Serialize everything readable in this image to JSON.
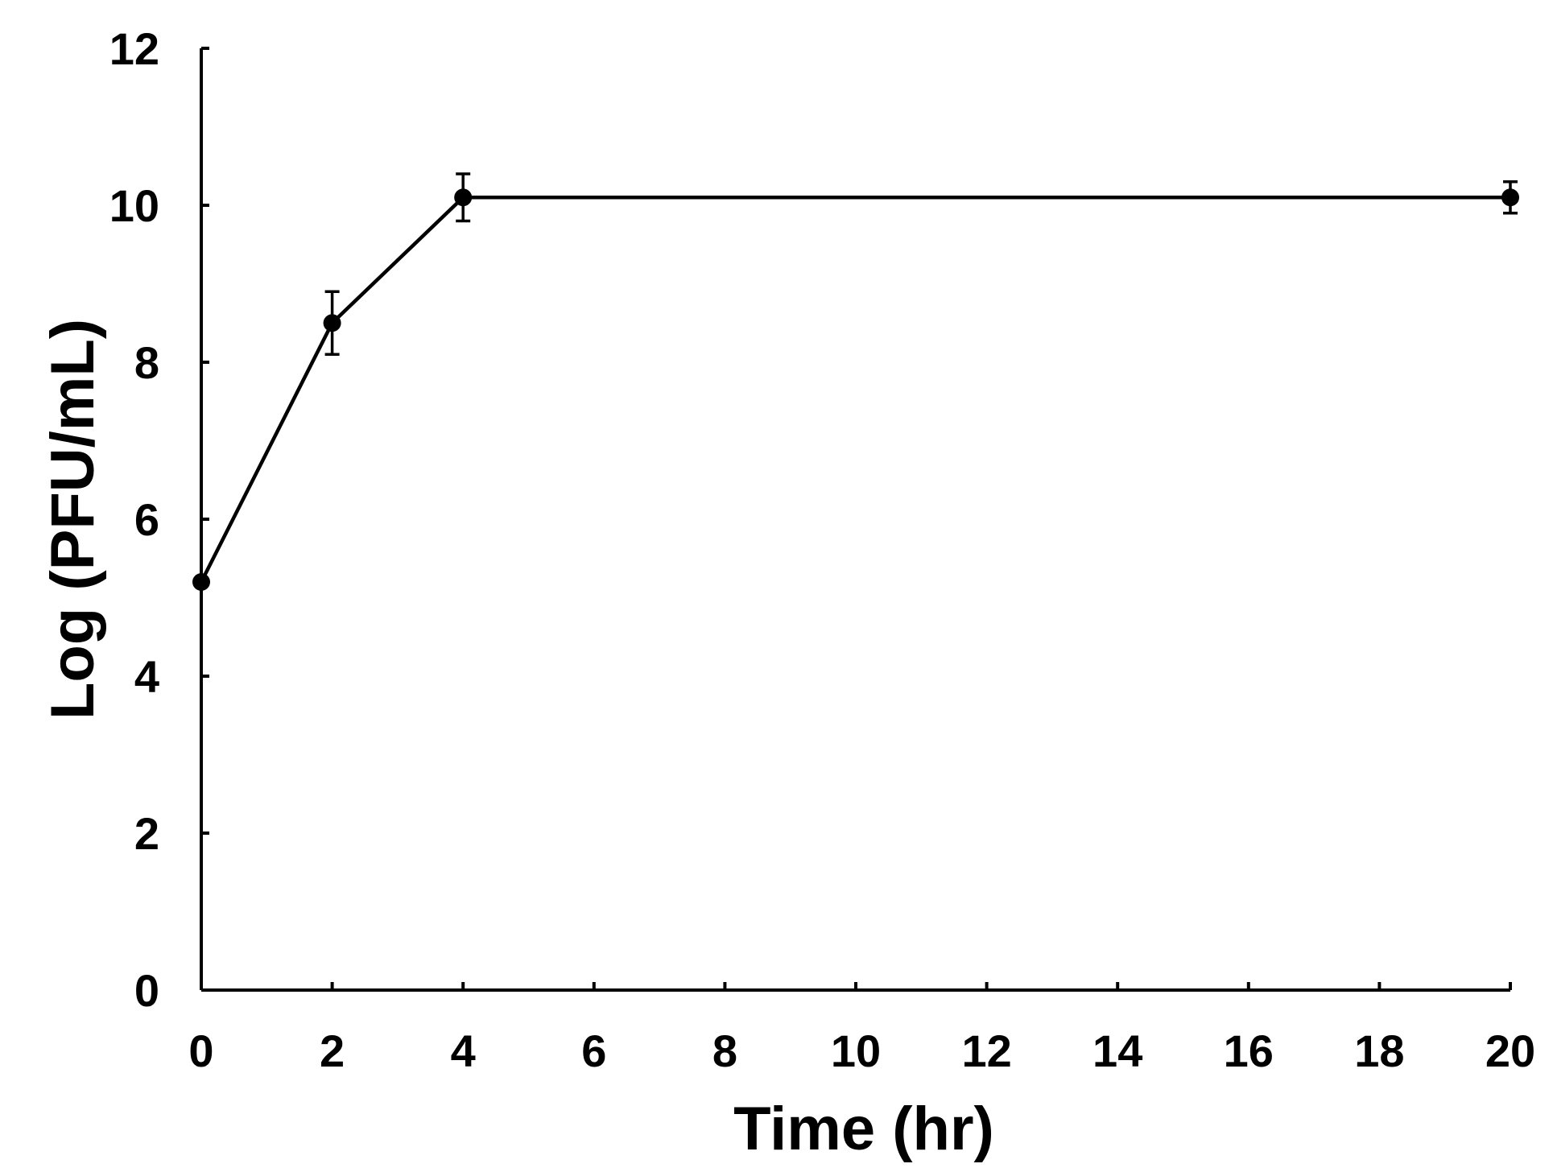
{
  "chart_data": {
    "type": "line",
    "xlabel": "Time (hr)",
    "ylabel": "Log (PFU/mL)",
    "xlim": [
      0,
      20
    ],
    "ylim": [
      0,
      12
    ],
    "xticks": [
      0,
      2,
      4,
      6,
      8,
      10,
      12,
      14,
      16,
      18,
      20
    ],
    "yticks": [
      0,
      2,
      4,
      6,
      8,
      10,
      12
    ],
    "grid": false,
    "legend": "none",
    "series": [
      {
        "color": "#000000",
        "x": [
          0,
          2,
          4,
          20
        ],
        "y": [
          5.2,
          8.5,
          10.1,
          10.1
        ],
        "error": [
          0,
          0.4,
          0.3,
          0.2
        ]
      }
    ]
  }
}
